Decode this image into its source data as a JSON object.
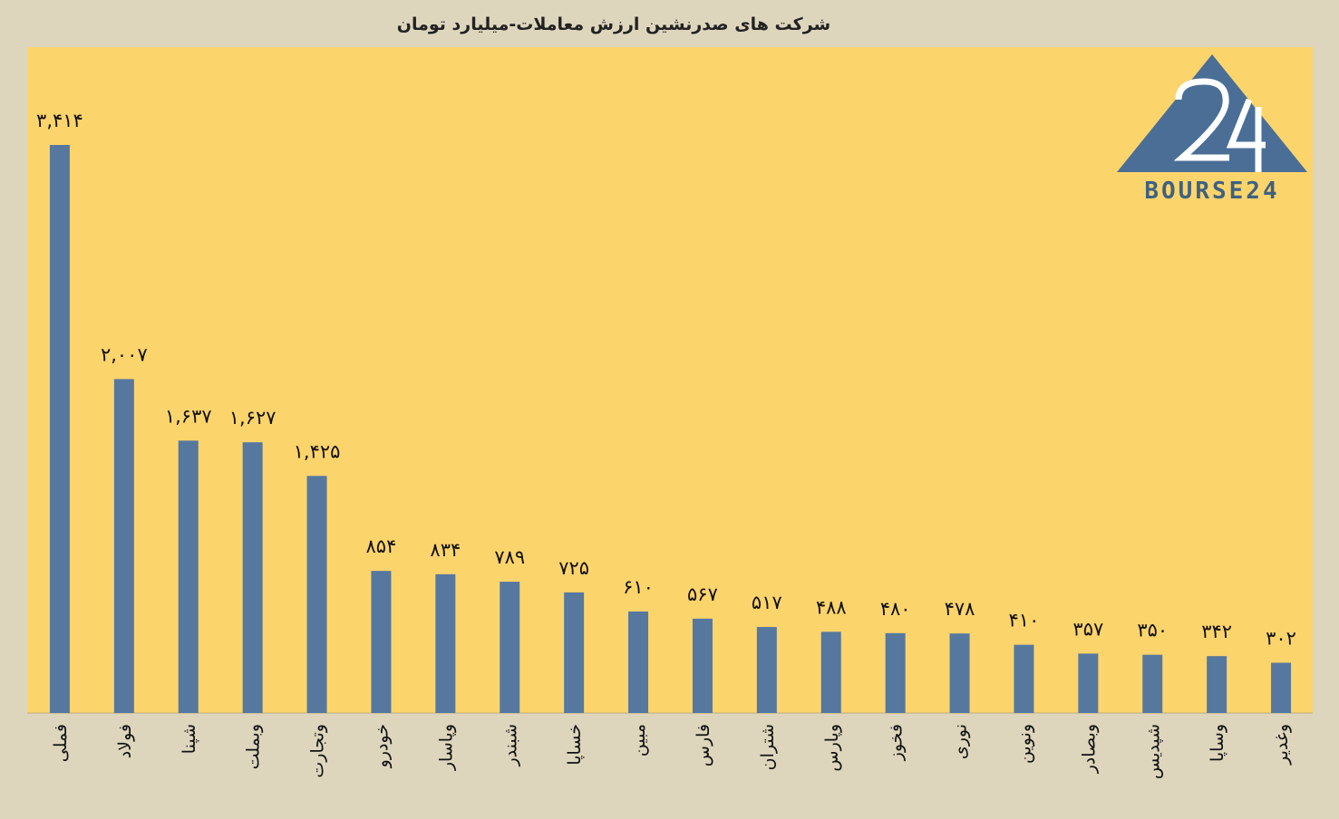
{
  "chart_data": {
    "type": "bar",
    "title": "شرکت های صدرنشین ارزش معاملات-میلیارد تومان",
    "categories": [
      "فملی",
      "فولاد",
      "شپنا",
      "وبملت",
      "وتجارت",
      "خودرو",
      "وپاسار",
      "شبندر",
      "خساپا",
      "مبین",
      "فارس",
      "شتران",
      "وپارس",
      "فخوز",
      "نوری",
      "ونوین",
      "وبصادر",
      "شپدیس",
      "وساپا",
      "وغدیر"
    ],
    "values": [
      3414,
      2007,
      1637,
      1627,
      1425,
      854,
      834,
      789,
      725,
      610,
      567,
      517,
      488,
      480,
      478,
      410,
      357,
      350,
      342,
      302
    ],
    "value_labels": [
      "۳,۴۱۴",
      "۲,۰۰۷",
      "۱,۶۳۷",
      "۱,۶۲۷",
      "۱,۴۲۵",
      "۸۵۴",
      "۸۳۴",
      "۷۸۹",
      "۷۲۵",
      "۶۱۰",
      "۵۶۷",
      "۵۱۷",
      "۴۸۸",
      "۴۸۰",
      "۴۷۸",
      "۴۱۰",
      "۳۵۷",
      "۳۵۰",
      "۳۴۲",
      "۳۰۲"
    ],
    "ylim": [
      0,
      3600
    ],
    "grid": false,
    "legend": "none",
    "colors": {
      "bar": "#56789f",
      "plot_bg": "#fcd46c",
      "page_bg": "#ded5bd"
    }
  },
  "logo": {
    "number": "24",
    "text": "BOURSE24",
    "color": "#4a6e96"
  }
}
